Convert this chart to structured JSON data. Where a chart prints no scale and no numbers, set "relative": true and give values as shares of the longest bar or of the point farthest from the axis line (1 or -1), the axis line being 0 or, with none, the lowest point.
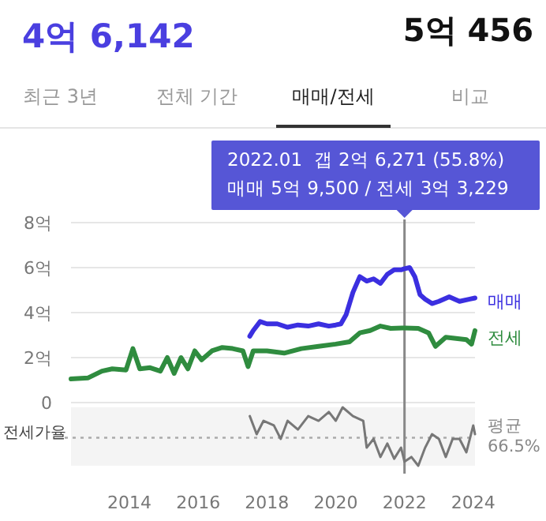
{
  "chart_data": [
    {
      "type": "other",
      "title": "4억 6,142",
      "subtitle": "5억 456",
      "annotations": [
        "최근 3년",
        "전체 기간",
        "매매/전세",
        "비교"
      ]
    },
    {
      "type": "line",
      "xlim": [
        2012.3,
        2024.05
      ],
      "xticks": [
        2014,
        2016,
        2018,
        2020,
        2022,
        2024
      ],
      "ylim": [
        0,
        8
      ],
      "yticks": [
        {
          "value": 0,
          "label": "0"
        },
        {
          "value": 2,
          "label": "2억"
        },
        {
          "value": 4,
          "label": "4억"
        },
        {
          "value": 6,
          "label": "6억"
        },
        {
          "value": 8,
          "label": "8억"
        }
      ],
      "grid": "y",
      "tick_labels": "y",
      "line_style": "solid",
      "marker": "none",
      "series": [
        {
          "name": "매매",
          "color": "#3b2fe0",
          "x": [
            2017.5,
            2017.6,
            2017.8,
            2018.0,
            2018.3,
            2018.6,
            2018.9,
            2019.2,
            2019.5,
            2019.8,
            2020.0,
            2020.15,
            2020.3,
            2020.5,
            2020.7,
            2020.9,
            2021.1,
            2021.3,
            2021.5,
            2021.7,
            2021.9,
            2022.0,
            2022.15,
            2022.3,
            2022.45,
            2022.6,
            2022.8,
            2023.0,
            2023.3,
            2023.6,
            2023.9,
            2024.05
          ],
          "values": [
            2.95,
            3.2,
            3.6,
            3.5,
            3.5,
            3.35,
            3.45,
            3.4,
            3.5,
            3.4,
            3.45,
            3.5,
            3.9,
            4.9,
            5.6,
            5.4,
            5.5,
            5.3,
            5.7,
            5.9,
            5.9,
            5.95,
            6.0,
            5.6,
            4.8,
            4.6,
            4.4,
            4.5,
            4.7,
            4.5,
            4.6,
            4.65
          ]
        },
        {
          "name": "전세",
          "color": "#2f8c3f",
          "x": [
            2012.3,
            2012.8,
            2013.2,
            2013.5,
            2013.9,
            2014.1,
            2014.3,
            2014.6,
            2014.9,
            2015.1,
            2015.3,
            2015.5,
            2015.7,
            2015.9,
            2016.1,
            2016.4,
            2016.7,
            2017.0,
            2017.3,
            2017.45,
            2017.6,
            2018.0,
            2018.5,
            2019.0,
            2019.5,
            2020.0,
            2020.4,
            2020.7,
            2021.0,
            2021.3,
            2021.6,
            2022.0,
            2022.4,
            2022.7,
            2022.9,
            2023.2,
            2023.5,
            2023.8,
            2023.95,
            2024.05
          ],
          "values": [
            1.05,
            1.1,
            1.4,
            1.5,
            1.45,
            2.4,
            1.5,
            1.55,
            1.4,
            2.0,
            1.3,
            2.0,
            1.5,
            2.3,
            1.9,
            2.3,
            2.45,
            2.4,
            2.3,
            1.6,
            2.3,
            2.3,
            2.2,
            2.4,
            2.5,
            2.6,
            2.7,
            3.1,
            3.2,
            3.4,
            3.3,
            3.32,
            3.3,
            3.1,
            2.5,
            2.9,
            2.85,
            2.8,
            2.6,
            3.2
          ]
        }
      ],
      "ref_lines": [
        {
          "axis": "x",
          "value": 2022.0,
          "label": null,
          "color": "#888888"
        }
      ],
      "annotations": [
        "2022.01  갭 2억 6,271 (55.8%)",
        "매매 5억 9,500 / 전세 3억 3,229"
      ]
    },
    {
      "type": "line",
      "ylabel": "전세가율",
      "xlim": [
        2012.3,
        2024.05
      ],
      "xticks": [
        2014,
        2016,
        2018,
        2020,
        2022,
        2024
      ],
      "relative": true,
      "tick_labels": "x",
      "line_style": "solid",
      "marker": "none",
      "series": [
        {
          "color": "#777777",
          "x": [
            2017.5,
            2017.7,
            2017.9,
            2018.2,
            2018.4,
            2018.6,
            2018.9,
            2019.2,
            2019.5,
            2019.8,
            2020.0,
            2020.2,
            2020.5,
            2020.8,
            2020.9,
            2021.1,
            2021.3,
            2021.5,
            2021.7,
            2021.9,
            2022.0,
            2022.2,
            2022.4,
            2022.6,
            2022.8,
            2023.0,
            2023.2,
            2023.4,
            2023.6,
            2023.8,
            2024.0,
            2024.05
          ],
          "values": [
            0.85,
            0.54,
            0.77,
            0.69,
            0.46,
            0.77,
            0.62,
            0.85,
            0.77,
            0.92,
            0.77,
            1,
            0.85,
            0.77,
            0.31,
            0.46,
            0.15,
            0.38,
            0.12,
            0.31,
            0.07,
            0.15,
            0,
            0.31,
            0.54,
            0.46,
            0.15,
            0.46,
            0.46,
            0.23,
            0.69,
            0.54
          ]
        }
      ],
      "ref_lines": [
        {
          "axis": "y",
          "value": 0.48,
          "label": "평균 66.5%",
          "color": "#aaaaaa",
          "line_style": "dotted"
        },
        {
          "axis": "x",
          "value": 2022.0,
          "label": null,
          "color": "#888888"
        }
      ]
    }
  ]
}
